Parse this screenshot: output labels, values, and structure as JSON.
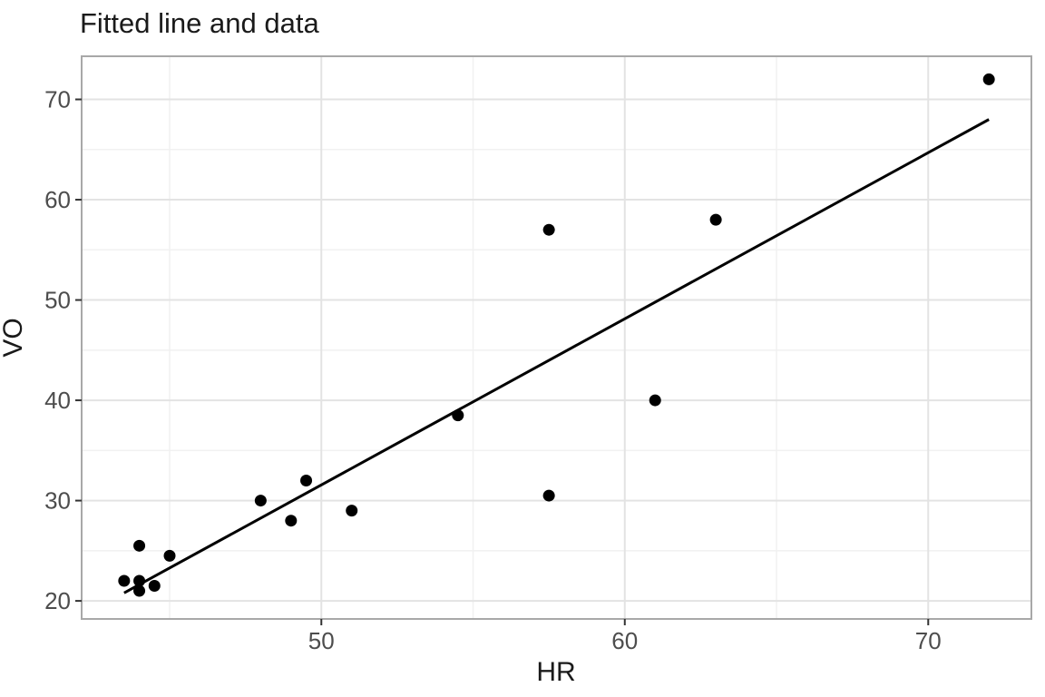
{
  "chart_data": {
    "type": "scatter",
    "title": "Fitted line and data",
    "xlabel": "HR",
    "ylabel": "VO",
    "legend": "none",
    "grid": true,
    "xlim": [
      42.1,
      73.4
    ],
    "ylim": [
      18.2,
      74.3
    ],
    "x_ticks": [
      50,
      60,
      70
    ],
    "x_minor_ticks": [
      45,
      55,
      65
    ],
    "y_ticks": [
      20,
      30,
      40,
      50,
      60,
      70
    ],
    "y_minor_ticks": [
      25,
      35,
      45,
      55,
      65
    ],
    "points": [
      [
        43.5,
        22
      ],
      [
        44,
        21
      ],
      [
        44,
        22
      ],
      [
        44,
        25.5
      ],
      [
        44.5,
        21.5
      ],
      [
        45,
        24.5
      ],
      [
        48,
        30
      ],
      [
        49,
        28
      ],
      [
        49.5,
        32
      ],
      [
        51,
        29
      ],
      [
        54.5,
        38.5
      ],
      [
        57.5,
        30.5
      ],
      [
        57.5,
        57
      ],
      [
        61,
        40
      ],
      [
        63,
        58
      ],
      [
        72,
        72
      ]
    ],
    "fitted_line": {
      "x1": 43.5,
      "y1": 20.8,
      "x2": 72,
      "y2": 68
    },
    "colors": {
      "point": "#000000",
      "line": "#000000",
      "grid_major": "#e3e3e3",
      "grid_minor": "#f1f1f1",
      "panel_border": "#a8a8a8",
      "tick": "#333333",
      "tick_label": "#4d4d4d",
      "text": "#1a1a1a",
      "background": "#ffffff"
    }
  }
}
